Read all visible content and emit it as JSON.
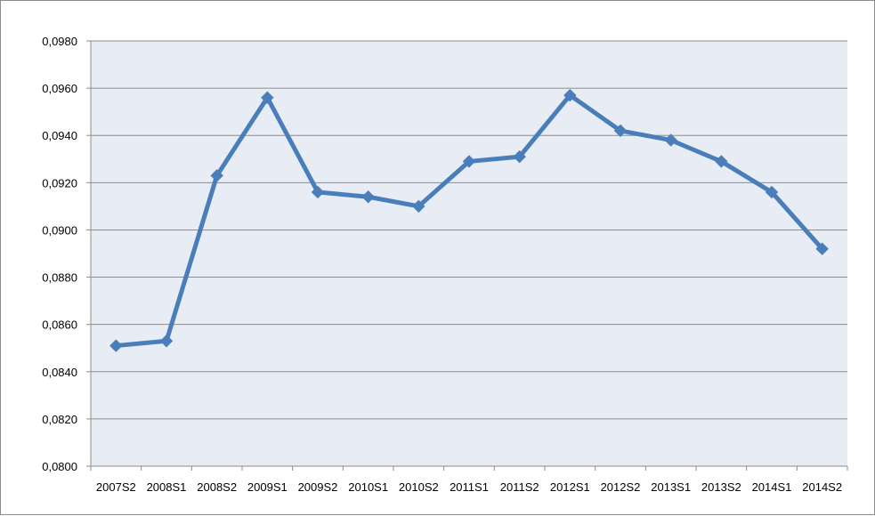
{
  "chart_data": {
    "type": "line",
    "categories": [
      "2007S2",
      "2008S1",
      "2008S2",
      "2009S1",
      "2009S2",
      "2010S1",
      "2010S2",
      "2011S1",
      "2011S2",
      "2012S1",
      "2012S2",
      "2013S1",
      "2013S2",
      "2014S1",
      "2014S2"
    ],
    "series": [
      {
        "values": [
          0.0851,
          0.0853,
          0.0923,
          0.0956,
          0.0916,
          0.0914,
          0.091,
          0.0929,
          0.0931,
          0.0957,
          0.0942,
          0.0938,
          0.0929,
          0.0916,
          0.0892
        ],
        "color": "#4a7ebb",
        "marker": "diamond"
      }
    ],
    "ylim": [
      0.08,
      0.098
    ],
    "yticks": [
      "0,0800",
      "0,0820",
      "0,0840",
      "0,0860",
      "0,0880",
      "0,0900",
      "0,0920",
      "0,0940",
      "0,0960",
      "0,0980"
    ],
    "grid": true,
    "legend": "none",
    "colors": {
      "plot_background": "#e8edf5",
      "gridline": "#8c8c8c",
      "line": "#4a7ebb"
    }
  }
}
